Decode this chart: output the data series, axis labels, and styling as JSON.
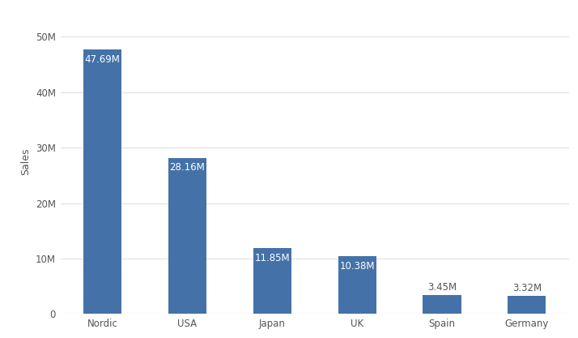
{
  "categories": [
    "Nordic",
    "USA",
    "Japan",
    "UK",
    "Spain",
    "Germany"
  ],
  "values": [
    47690000,
    28160000,
    11850000,
    10380000,
    3450000,
    3320000
  ],
  "labels": [
    "47.69M",
    "28.16M",
    "11.85M",
    "10.38M",
    "3.45M",
    "3.32M"
  ],
  "bar_color": "#4472a8",
  "ylabel": "Sales",
  "ylim": [
    0,
    55000000
  ],
  "yticks": [
    0,
    10000000,
    20000000,
    30000000,
    40000000,
    50000000
  ],
  "ytick_labels": [
    "0",
    "10M",
    "20M",
    "30M",
    "40M",
    "50M"
  ],
  "background_color": "#ffffff",
  "grid_color": "#e0e0e0",
  "label_color_inside": "#ffffff",
  "label_color_outside": "#555555",
  "label_fontsize": 8.5,
  "ylabel_fontsize": 9,
  "tick_fontsize": 8.5,
  "inside_threshold": 6000000
}
